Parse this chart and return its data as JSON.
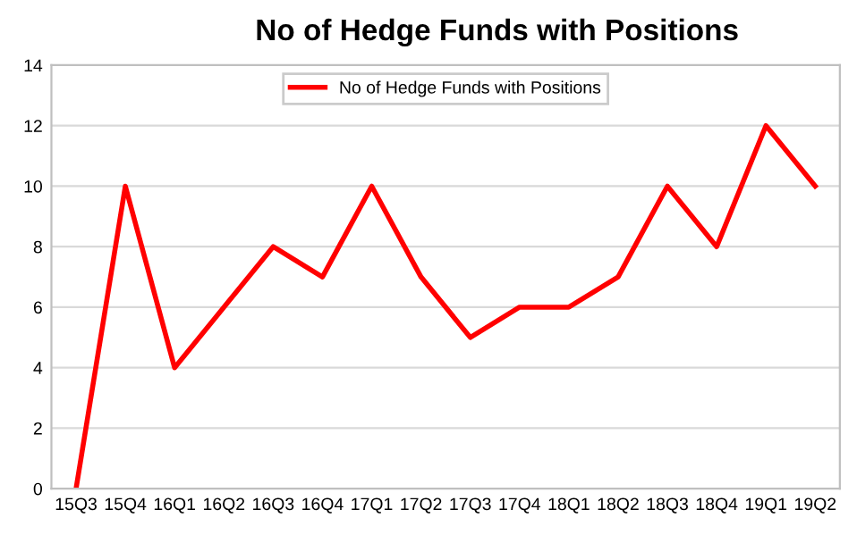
{
  "chart_data": {
    "type": "line",
    "title": "No of Hedge Funds with Positions",
    "categories": [
      "15Q3",
      "15Q4",
      "16Q1",
      "16Q2",
      "16Q3",
      "16Q4",
      "17Q1",
      "17Q2",
      "17Q3",
      "17Q4",
      "18Q1",
      "18Q2",
      "18Q3",
      "18Q4",
      "19Q1",
      "19Q2"
    ],
    "series": [
      {
        "name": "No of Hedge Funds with Positions",
        "color": "#ff0000",
        "values": [
          0,
          10,
          4,
          6,
          8,
          7,
          10,
          7,
          5,
          6,
          6,
          7,
          10,
          8,
          12,
          10
        ]
      }
    ],
    "ylim": [
      0,
      14
    ],
    "yticks": [
      0,
      2,
      4,
      6,
      8,
      10,
      12,
      14
    ],
    "grid": "y",
    "legend": "top",
    "marker": "none",
    "line_style": "solid"
  }
}
